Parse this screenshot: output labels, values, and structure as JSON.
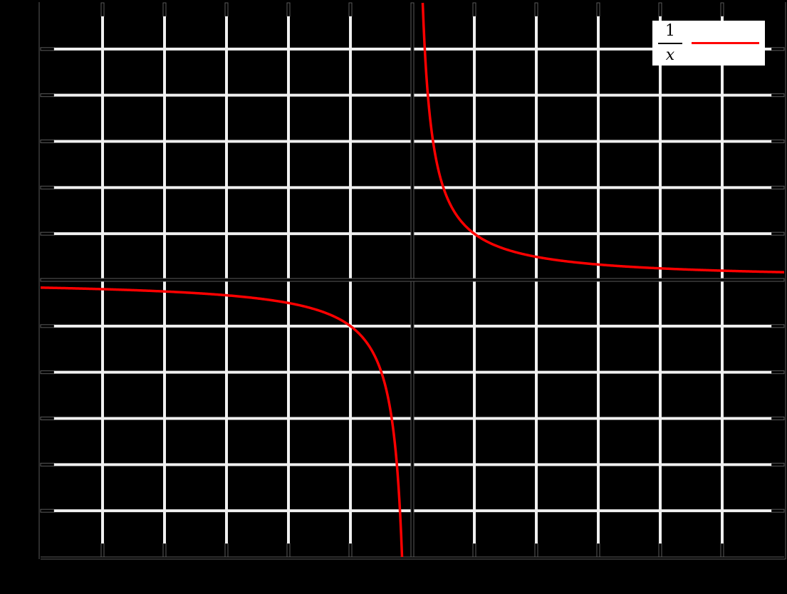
{
  "chart_data": {
    "type": "line",
    "title": "",
    "xlabel": "",
    "ylabel": "",
    "xlim": [
      -6,
      6
    ],
    "ylim": [
      -6,
      6
    ],
    "grid": true,
    "grid_step": 1,
    "x_ticks": [
      -5,
      -4,
      -3,
      -2,
      -1,
      0,
      1,
      2,
      3,
      4,
      5
    ],
    "y_ticks": [
      -5,
      -4,
      -3,
      -2,
      -1,
      0,
      1,
      2,
      3,
      4,
      5
    ],
    "tick_labels_visible": false,
    "legend_position": "upper right",
    "series": [
      {
        "name": "1/x",
        "function": "1/x",
        "color": "#ff0000",
        "x": [
          -6,
          -5,
          -4,
          -3,
          -2,
          -1,
          -0.5,
          -0.25,
          -0.2,
          -0.166,
          0.166,
          0.2,
          0.25,
          0.5,
          1,
          2,
          3,
          4,
          5,
          6
        ],
        "y": [
          -0.167,
          -0.2,
          -0.25,
          -0.333,
          -0.5,
          -1,
          -2,
          -4,
          -5,
          -6,
          6,
          5,
          4,
          2,
          1,
          0.5,
          0.333,
          0.25,
          0.2,
          0.167
        ]
      }
    ]
  },
  "legend": {
    "numerator": "1",
    "denominator": "x"
  },
  "colors": {
    "background": "#000000",
    "grid": "#f0f0f0",
    "axis": "#5a5a5a",
    "curve": "#ff0000",
    "legend_bg": "#ffffff"
  }
}
